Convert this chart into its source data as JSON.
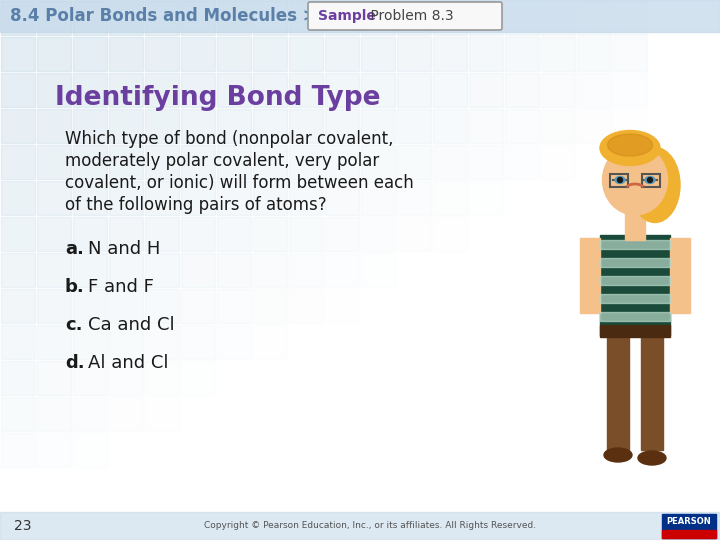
{
  "header_text": "8.4 Polar Bonds and Molecules >",
  "header_color": "#5a7fa8",
  "badge_sample_text": "Sample",
  "badge_problem_text": " Problem 8.3",
  "badge_sample_color": "#6b3fa0",
  "badge_problem_color": "#444444",
  "badge_border_color": "#999999",
  "title_text": "Identifying Bond Type",
  "title_color": "#6b3fa0",
  "body_lines": [
    "Which type of bond (nonpolar covalent,",
    "moderately polar covalent, very polar",
    "covalent, or ionic) will form between each",
    "of the following pairs of atoms?"
  ],
  "body_color": "#1a1a1a",
  "items": [
    {
      "label": "a.",
      "text": "N and H"
    },
    {
      "label": "b.",
      "text": "F and F"
    },
    {
      "label": "c.",
      "text": "Ca and Cl"
    },
    {
      "label": "d.",
      "text": "Al and Cl"
    }
  ],
  "item_label_color": "#1a1a1a",
  "item_text_color": "#1a1a1a",
  "page_number": "23",
  "footer_text": "Copyright © Pearson Education, Inc., or its affiliates. All Rights Reserved.",
  "footer_color": "#555555",
  "bg_color": "#ffffff",
  "header_bar_color": "#c5d9ea",
  "footer_bar_color": "#c5d9ea",
  "grid_tile_color": "#c8dce8",
  "grid_tile_light": "#ddeef8"
}
